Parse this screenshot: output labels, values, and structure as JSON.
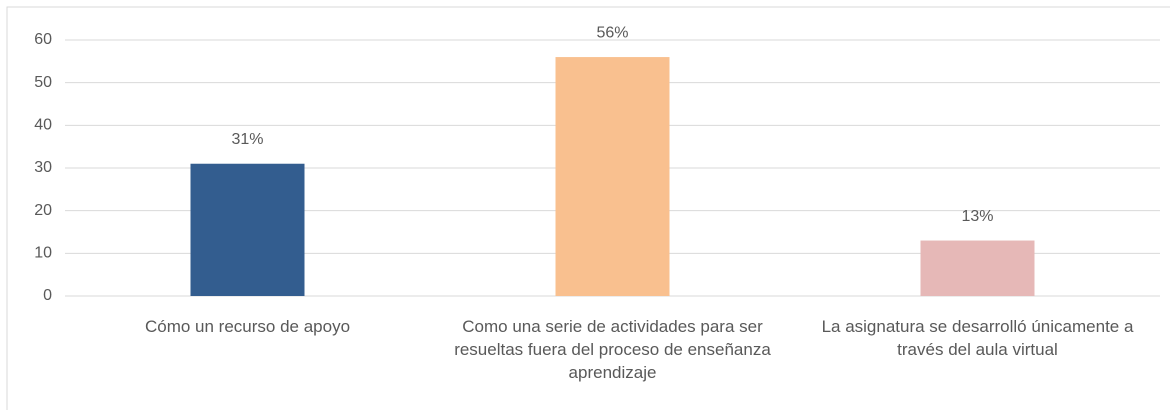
{
  "chart_data": {
    "type": "bar",
    "categories": [
      "Cómo un recurso de apoyo",
      "Como una serie de actividades para ser resueltas fuera del proceso de enseñanza aprendizaje",
      "La asignatura se desarrolló únicamente a través del aula virtual"
    ],
    "values": [
      31,
      56,
      13
    ],
    "value_labels": [
      "31%",
      "56%",
      "13%"
    ],
    "colors": [
      "#335d8f",
      "#f9c08f",
      "#e6b8b7"
    ],
    "ylim": [
      0,
      60
    ],
    "yticks": [
      0,
      10,
      20,
      30,
      40,
      50,
      60
    ],
    "grid": true
  }
}
